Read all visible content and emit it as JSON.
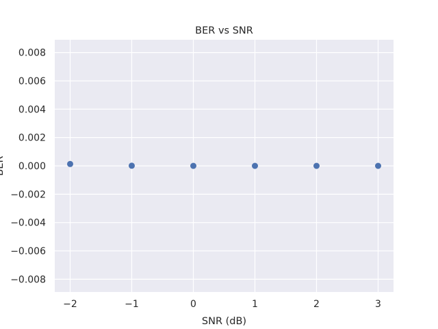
{
  "chart_data": {
    "type": "scatter",
    "title": "BER vs SNR",
    "xlabel": "SNR (dB)",
    "ylabel": "BER",
    "x": [
      -2,
      -1,
      0,
      1,
      2,
      3
    ],
    "y": [
      0.00013,
      1e-05,
      0.0,
      0.0,
      0.0,
      0.0
    ],
    "xlim": [
      -2.25,
      3.25
    ],
    "ylim": [
      -0.0089,
      0.0089
    ],
    "x_ticks": [
      -2,
      -1,
      0,
      1,
      2,
      3
    ],
    "x_tick_labels": [
      "−2",
      "−1",
      "0",
      "1",
      "2",
      "3"
    ],
    "y_ticks": [
      -0.008,
      -0.006,
      -0.004,
      -0.002,
      0.0,
      0.002,
      0.004,
      0.006,
      0.008
    ],
    "y_tick_labels": [
      "−0.008",
      "−0.006",
      "−0.004",
      "−0.002",
      "0.000",
      "0.002",
      "0.004",
      "0.006",
      "0.008"
    ],
    "grid": true,
    "colors": {
      "background": "#eaeaf2",
      "grid": "#ffffff",
      "marker": "#4c72b0",
      "text": "#262626"
    }
  }
}
